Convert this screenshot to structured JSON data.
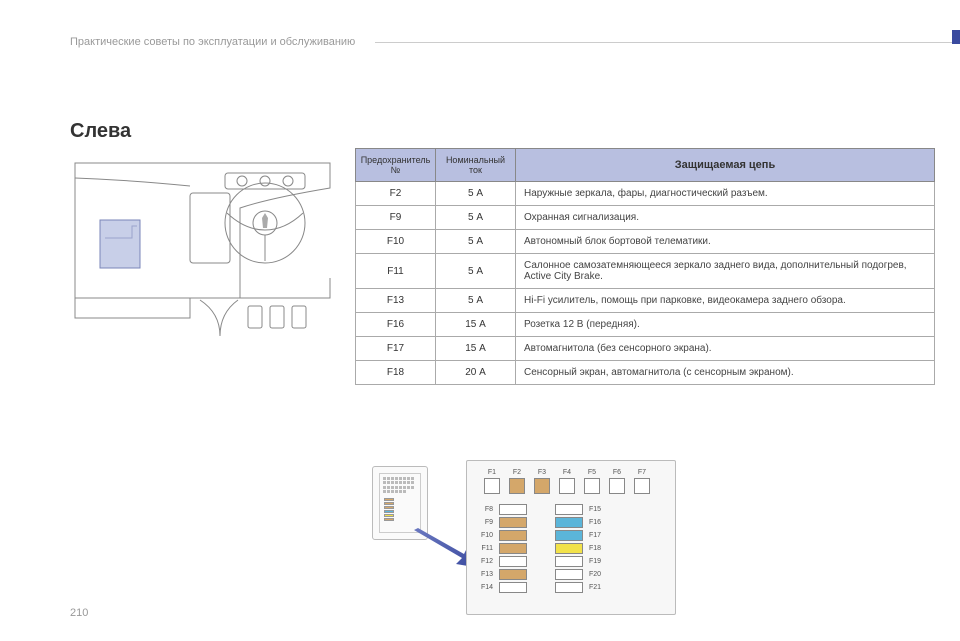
{
  "header": {
    "breadcrumb": "Практические советы по эксплуатации и обслуживанию"
  },
  "section_title": "Слева",
  "table": {
    "headers": {
      "fuse": "Предохранитель №",
      "amp": "Номинальный ток",
      "desc": "Защищаемая цепь"
    },
    "rows": [
      {
        "fuse": "F2",
        "amp": "5 А",
        "desc": "Наружные зеркала, фары, диагностический разъем."
      },
      {
        "fuse": "F9",
        "amp": "5 А",
        "desc": "Охранная сигнализация."
      },
      {
        "fuse": "F10",
        "amp": "5 А",
        "desc": "Автономный блок бортовой телематики."
      },
      {
        "fuse": "F11",
        "amp": "5 А",
        "desc": "Салонное самозатемняющееся зеркало заднего вида, дополнительный подогрев, Active City Brake."
      },
      {
        "fuse": "F13",
        "amp": "5 А",
        "desc": "Hi-Fi усилитель, помощь при парковке, видеокамера заднего обзора."
      },
      {
        "fuse": "F16",
        "amp": "15 А",
        "desc": "Розетка 12 В (передняя)."
      },
      {
        "fuse": "F17",
        "amp": "15 А",
        "desc": "Автомагнитола (без сенсорного экрана)."
      },
      {
        "fuse": "F18",
        "amp": "20 А",
        "desc": "Сенсорный экран, автомагнитола (с сенсорным экраном)."
      }
    ]
  },
  "fusebox": {
    "top_labels": [
      "F1",
      "F2",
      "F3",
      "F4",
      "F5",
      "F6",
      "F7"
    ],
    "top_colors": [
      "#ffffff",
      "#d4a76a",
      "#d4a76a",
      "#ffffff",
      "#ffffff",
      "#ffffff",
      "#ffffff"
    ],
    "bottom": [
      {
        "l1": "F8",
        "c1": "#ffffff",
        "l2": "F15",
        "c2": "#ffffff"
      },
      {
        "l1": "F9",
        "c1": "#d4a76a",
        "l2": "F16",
        "c2": "#5bb5d9"
      },
      {
        "l1": "F10",
        "c1": "#d4a76a",
        "l2": "F17",
        "c2": "#5bb5d9"
      },
      {
        "l1": "F11",
        "c1": "#d4a76a",
        "l2": "F18",
        "c2": "#f2e24a"
      },
      {
        "l1": "F12",
        "c1": "#ffffff",
        "l2": "F19",
        "c2": "#ffffff"
      },
      {
        "l1": "F13",
        "c1": "#d4a76a",
        "l2": "F20",
        "c2": "#ffffff"
      },
      {
        "l1": "F14",
        "c1": "#ffffff",
        "l2": "F21",
        "c2": "#ffffff"
      }
    ],
    "mini_colors": [
      "#d4a76a",
      "#d4a76a",
      "#d4a76a",
      "#5bb5d9",
      "#f2e24a",
      "#d4a76a"
    ]
  },
  "page_number": "210",
  "colors": {
    "table_header_bg": "#b8bfe0",
    "accent": "#3a4a9f",
    "arrow": "#4a5aa8"
  }
}
